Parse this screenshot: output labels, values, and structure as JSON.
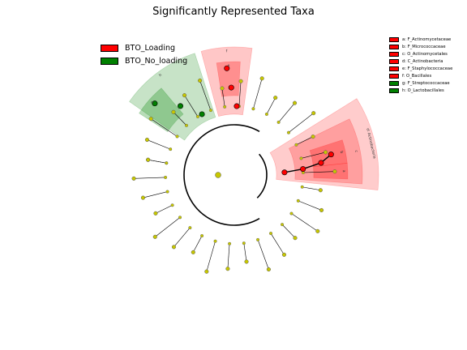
{
  "title": "Significantly Represented Taxa",
  "colors": {
    "loading": "#ff0000",
    "no_loading": "#008000",
    "node_neutral": "#c7c700",
    "loading_shade": "#ff9999",
    "no_loading_shade": "#99cc99"
  },
  "legend": [
    {
      "label": "BTO_Loading",
      "color": "#ff0000"
    },
    {
      "label": "BTO_No_loading",
      "color": "#008000"
    }
  ],
  "taxa_legend": [
    {
      "label": "a: F_Actinomycetaceae",
      "color": "#ff0000"
    },
    {
      "label": "b: F_Micrococcaceae",
      "color": "#ff0000"
    },
    {
      "label": "c: O_Actinomycetales",
      "color": "#ff0000"
    },
    {
      "label": "d: C_Actinobacteria",
      "color": "#ff0000"
    },
    {
      "label": "e: F_Staphylococcaceae",
      "color": "#ff0000"
    },
    {
      "label": "f: O_Bacillales",
      "color": "#ff0000"
    },
    {
      "label": "g: F_Streptococcaceae",
      "color": "#008000"
    },
    {
      "label": "h: O_Lactobacillales",
      "color": "#008000"
    }
  ],
  "chart_data": {
    "type": "cladogram",
    "title": "Significantly Represented Taxa",
    "clades": [
      {
        "id": "d",
        "name": "C_Actinobacteria",
        "group": "BTO_Loading",
        "level": 2,
        "angle_start": -32,
        "angle_end": 6,
        "sector_label": "d: Actinobacteria"
      },
      {
        "id": "c",
        "name": "O_Actinomycetales",
        "group": "BTO_Loading",
        "level": 3,
        "angle_start": -26,
        "angle_end": 4,
        "sector_label": "c"
      },
      {
        "id": "b",
        "name": "F_Micrococcaceae",
        "group": "BTO_Loading",
        "level": 4,
        "angle_start": -18,
        "angle_end": -6,
        "sector_label": "b"
      },
      {
        "id": "a",
        "name": "F_Actinomycetaceae",
        "group": "BTO_Loading",
        "level": 4,
        "angle_start": -6,
        "angle_end": 2,
        "sector_label": "a"
      },
      {
        "id": "f",
        "name": "O_Bacillales",
        "group": "BTO_Loading",
        "level": 3,
        "angle_start": -105,
        "angle_end": -82,
        "sector_label": "f"
      },
      {
        "id": "e",
        "name": "F_Staphylococcaceae",
        "group": "BTO_Loading",
        "level": 4,
        "angle_start": -99,
        "angle_end": -87,
        "sector_label": "e"
      },
      {
        "id": "h",
        "name": "O_Lactobacillales",
        "group": "BTO_No_loading",
        "level": 3,
        "angle_start": -145,
        "angle_end": -108,
        "sector_label": "h"
      },
      {
        "id": "g",
        "name": "F_Streptococcaceae",
        "group": "BTO_No_loading",
        "level": 4,
        "angle_start": -147,
        "angle_end": -130,
        "sector_label": "g"
      }
    ]
  }
}
